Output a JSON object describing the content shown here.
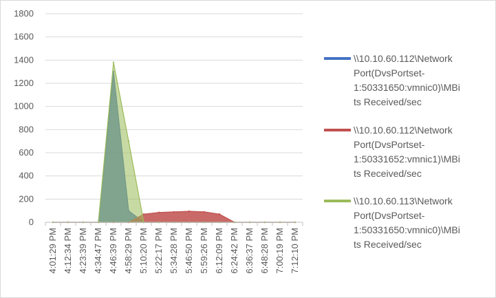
{
  "chart_data": {
    "type": "area",
    "title": "",
    "xlabel": "",
    "ylabel": "",
    "ylim": [
      0,
      1800
    ],
    "yticks": [
      0,
      200,
      400,
      600,
      800,
      1000,
      1200,
      1400,
      1600,
      1800
    ],
    "grid": "horizontal",
    "legend_position": "right",
    "x_tick_labels": [
      "4:01:29 PM",
      "4:12:34 PM",
      "4:23:39 PM",
      "4:34:47 PM",
      "4:46:39 PM",
      "4:58:29 PM",
      "5:10:20 PM",
      "5:22:17 PM",
      "5:34:28 PM",
      "5:46:50 PM",
      "5:59:26 PM",
      "6:12:09 PM",
      "6:24:42 PM",
      "6:36:37 PM",
      "6:48:28 PM",
      "7:00:19 PM",
      "7:12:10 PM"
    ],
    "series": [
      {
        "name": "\\\\10.10.60.112\\Network Port(DvsPortset-1:50331650:vmnic0)\\MBits Received/sec",
        "color": "#4472c4",
        "values": [
          0,
          0,
          0,
          0,
          1300,
          100,
          0,
          0,
          0,
          0,
          0,
          0,
          0,
          0,
          0,
          0,
          0
        ]
      },
      {
        "name": "\\\\10.10.60.112\\Network Port(DvsPortset-1:50331652:vmnic1)\\MBits Received/sec",
        "color": "#c0504d",
        "values": [
          0,
          0,
          0,
          0,
          0,
          0,
          70,
          85,
          90,
          95,
          90,
          70,
          0,
          0,
          0,
          0,
          0
        ]
      },
      {
        "name": "\\\\10.10.60.113\\Network Port(DvsPortset-1:50331650:vmnic0)\\MBits Received/sec",
        "color": "#9bbb59",
        "values": [
          0,
          0,
          0,
          0,
          1380,
          700,
          0,
          0,
          0,
          0,
          0,
          0,
          0,
          0,
          0,
          0,
          0
        ]
      }
    ],
    "legend_lines": [
      [
        "\\\\10.10.60.112\\Network",
        "Port(DvsPortset-",
        "1:50331650:vmnic0)\\MBi",
        "ts Received/sec"
      ],
      [
        "\\\\10.10.60.112\\Network",
        "Port(DvsPortset-",
        "1:50331652:vmnic1)\\MBi",
        "ts Received/sec"
      ],
      [
        "\\\\10.10.60.113\\Network",
        "Port(DvsPortset-",
        "1:50331650:vmnic0)\\MBi",
        "ts Received/sec"
      ]
    ]
  }
}
